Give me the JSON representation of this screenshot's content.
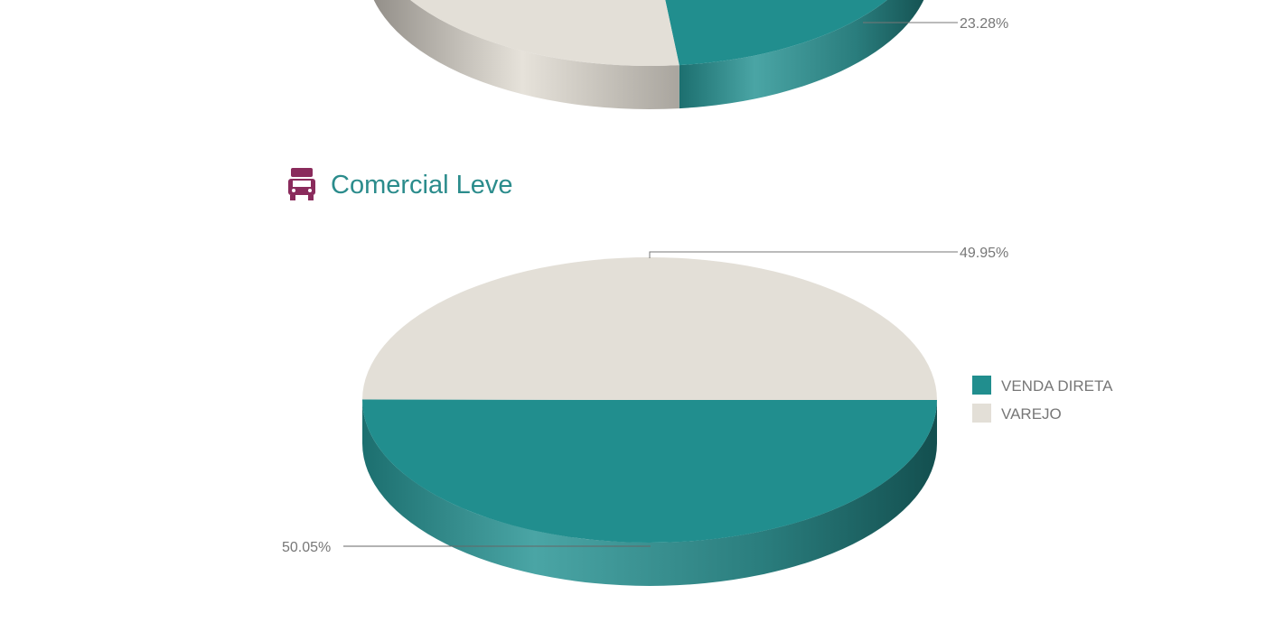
{
  "section": {
    "title": "Comercial Leve",
    "icon": "truck-icon",
    "icon_color": "#8a2b5c",
    "title_color": "#2b8c8c"
  },
  "colors": {
    "venda_direta": "#218e8e",
    "varejo": "#e3dfd7"
  },
  "chart_data": [
    {
      "type": "pie",
      "style": "3d",
      "partially_visible": true,
      "categories": [
        "VENDA DIRETA",
        "VAREJO"
      ],
      "values": [
        23.28,
        76.72
      ],
      "data_labels": [
        "23.28%"
      ]
    },
    {
      "type": "pie",
      "style": "3d",
      "title": "Comercial Leve",
      "categories": [
        "VENDA DIRETA",
        "VAREJO"
      ],
      "values": [
        50.05,
        49.95
      ],
      "data_labels": [
        "50.05%",
        "49.95%"
      ],
      "legend": {
        "placement": "right",
        "entries": [
          "VENDA DIRETA",
          "VAREJO"
        ]
      }
    }
  ]
}
